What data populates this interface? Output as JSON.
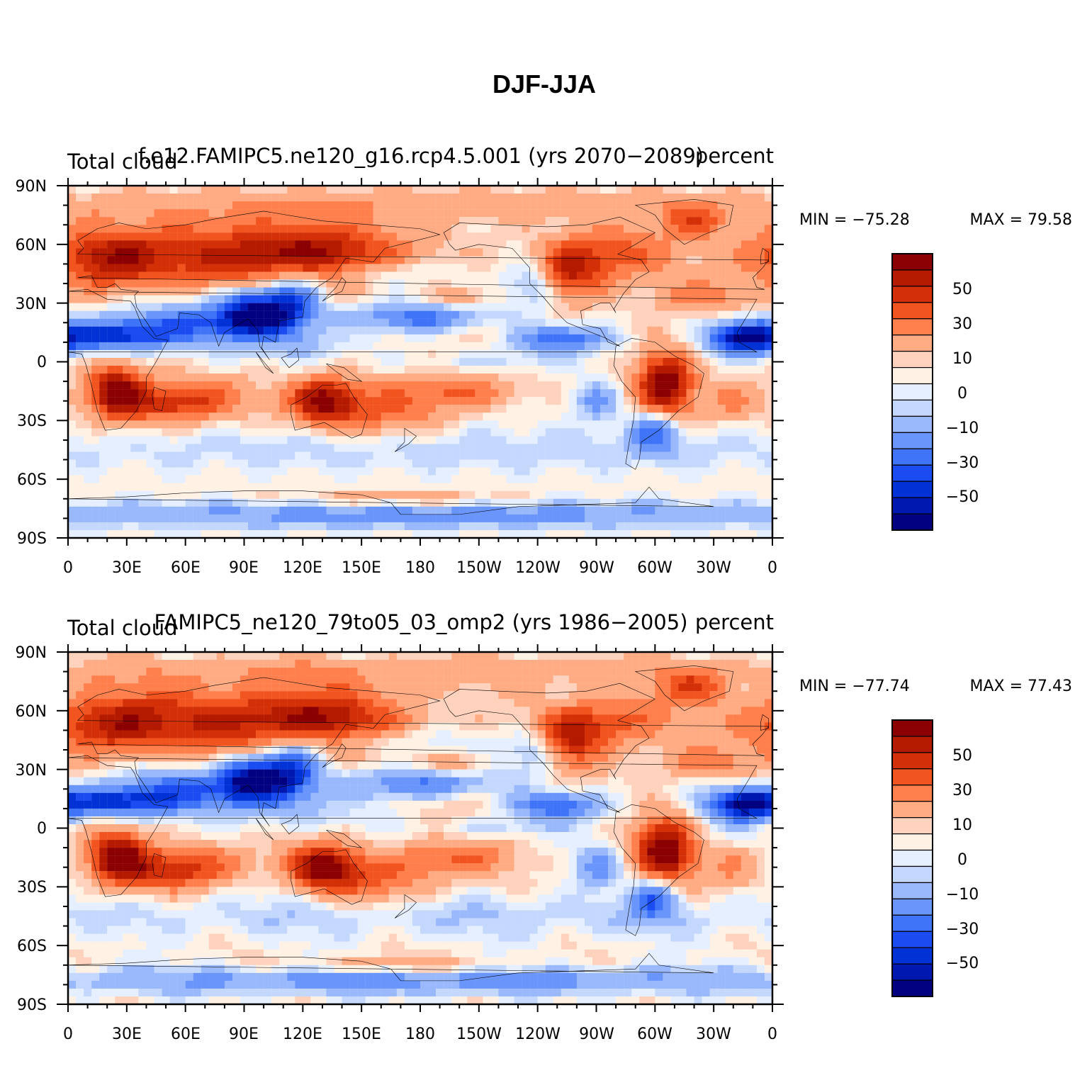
{
  "figure": {
    "title": "DJF-JJA"
  },
  "chart_data": [
    {
      "type": "heatmap",
      "case_title": "f.e12.FAMIPC5.ne120_g16.rcp4.5.001 (yrs 2070−2089)",
      "variable_label": "Total cloud",
      "units_label": "percent",
      "min_label": "MIN = −75.28",
      "max_label": "MAX =   79.58",
      "min": -75.28,
      "max": 79.58,
      "lat_range": [
        -90,
        90
      ],
      "lon_range": [
        0,
        360
      ],
      "lat_ticks": [
        "90N",
        "60N",
        "30N",
        "0",
        "30S",
        "60S",
        "90S"
      ],
      "lon_ticks": [
        "0",
        "30E",
        "60E",
        "90E",
        "120E",
        "150E",
        "180",
        "150W",
        "120W",
        "90W",
        "60W",
        "30W",
        "0"
      ],
      "colorbar_levels": [
        -70,
        -60,
        -50,
        -40,
        -30,
        -20,
        -10,
        -5,
        0,
        5,
        10,
        20,
        30,
        40,
        50,
        60,
        70
      ],
      "colorbar_labels": [
        "50",
        "30",
        "10",
        "0",
        "−10",
        "−30",
        "−50"
      ]
    },
    {
      "type": "heatmap",
      "case_title": "FAMIPC5_ne120_79to05_03_omp2 (yrs 1986−2005)",
      "variable_label": "Total cloud",
      "units_label": "percent",
      "min_label": "MIN = −77.74",
      "max_label": "MAX =   77.43",
      "min": -77.74,
      "max": 77.43,
      "lat_range": [
        -90,
        90
      ],
      "lon_range": [
        0,
        360
      ],
      "lat_ticks": [
        "90N",
        "60N",
        "30N",
        "0",
        "30S",
        "60S",
        "90S"
      ],
      "lon_ticks": [
        "0",
        "30E",
        "60E",
        "90E",
        "120E",
        "150E",
        "180",
        "150W",
        "120W",
        "90W",
        "60W",
        "30W",
        "0"
      ],
      "colorbar_levels": [
        -70,
        -60,
        -50,
        -40,
        -30,
        -20,
        -10,
        -5,
        0,
        5,
        10,
        20,
        30,
        40,
        50,
        60,
        70
      ],
      "colorbar_labels": [
        "50",
        "30",
        "10",
        "0",
        "−10",
        "−30",
        "−50"
      ]
    }
  ],
  "colors": {
    "palette": [
      "#000080",
      "#0018b0",
      "#0032d6",
      "#1a4cf2",
      "#3f74f8",
      "#6a95fa",
      "#9ab8fc",
      "#c4d7fd",
      "#e6efff",
      "#fff1e4",
      "#ffd2bd",
      "#ffac85",
      "#ff7f4d",
      "#f2541f",
      "#d43008",
      "#b31a00",
      "#8b0000"
    ],
    "coast": "#000000"
  }
}
